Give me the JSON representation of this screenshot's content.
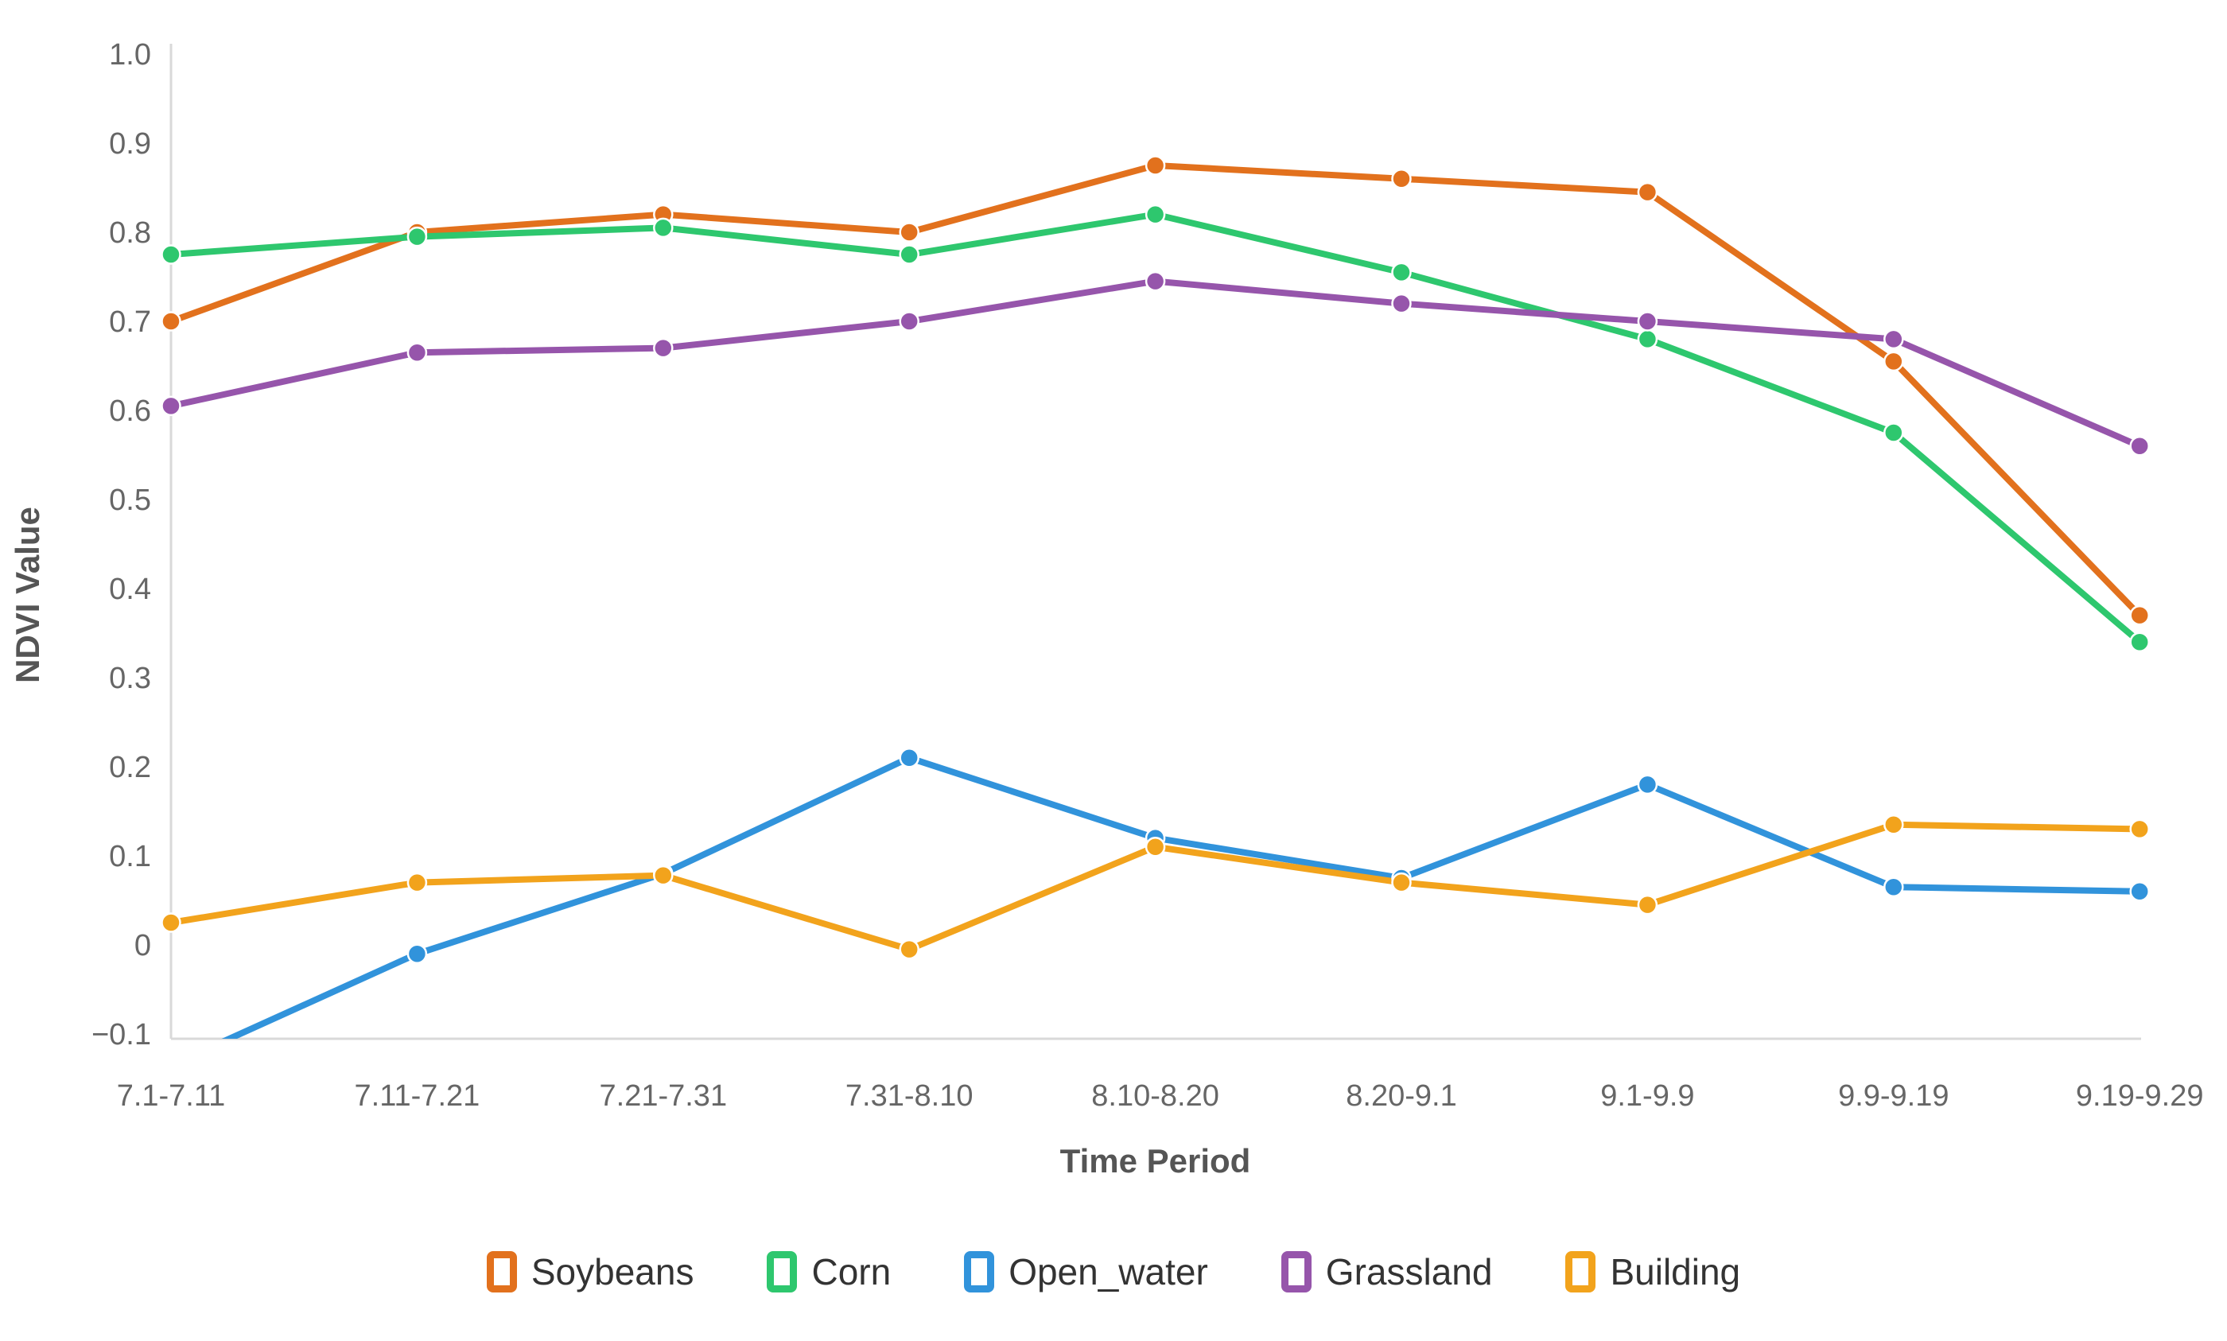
{
  "chart_data": {
    "type": "line",
    "title": "",
    "xlabel": "Time Period",
    "ylabel": "NDVI Value",
    "ylim": [
      -0.1,
      1.0
    ],
    "grid": false,
    "legend_position": "bottom",
    "markers": true,
    "y_ticks": [
      "1.0",
      "0.9",
      "0.8",
      "0.7",
      "0.6",
      "0.5",
      "0.4",
      "0.3",
      "0.2",
      "0.1",
      "0",
      "−0.1"
    ],
    "categories": [
      "7.1-7.11",
      "7.11-7.21",
      "7.21-7.31",
      "7.31-8.10",
      "8.10-8.20",
      "8.20-9.1",
      "9.1-9.9",
      "9.9-9.19",
      "9.19-9.29"
    ],
    "series": [
      {
        "name": "Soybeans",
        "color": "#E2711D",
        "values": [
          0.7,
          0.8,
          0.82,
          0.8,
          0.875,
          0.86,
          0.845,
          0.655,
          0.37
        ]
      },
      {
        "name": "Corn",
        "color": "#2EC76E",
        "values": [
          0.775,
          0.795,
          0.805,
          0.775,
          0.82,
          0.755,
          0.68,
          0.575,
          0.34
        ]
      },
      {
        "name": "Open_water",
        "color": "#3193DB",
        "values": [
          -0.135,
          -0.01,
          0.08,
          0.21,
          0.12,
          0.075,
          0.18,
          0.065,
          0.06
        ]
      },
      {
        "name": "Grassland",
        "color": "#9655AB",
        "values": [
          0.605,
          0.665,
          0.67,
          0.7,
          0.745,
          0.72,
          0.7,
          0.68,
          0.56
        ]
      },
      {
        "name": "Building",
        "color": "#F2A31C",
        "values": [
          0.025,
          0.07,
          0.078,
          -0.005,
          0.11,
          0.07,
          0.045,
          0.135,
          0.13
        ]
      }
    ]
  },
  "axis_style": {
    "line_color": "#D9D9D9"
  }
}
